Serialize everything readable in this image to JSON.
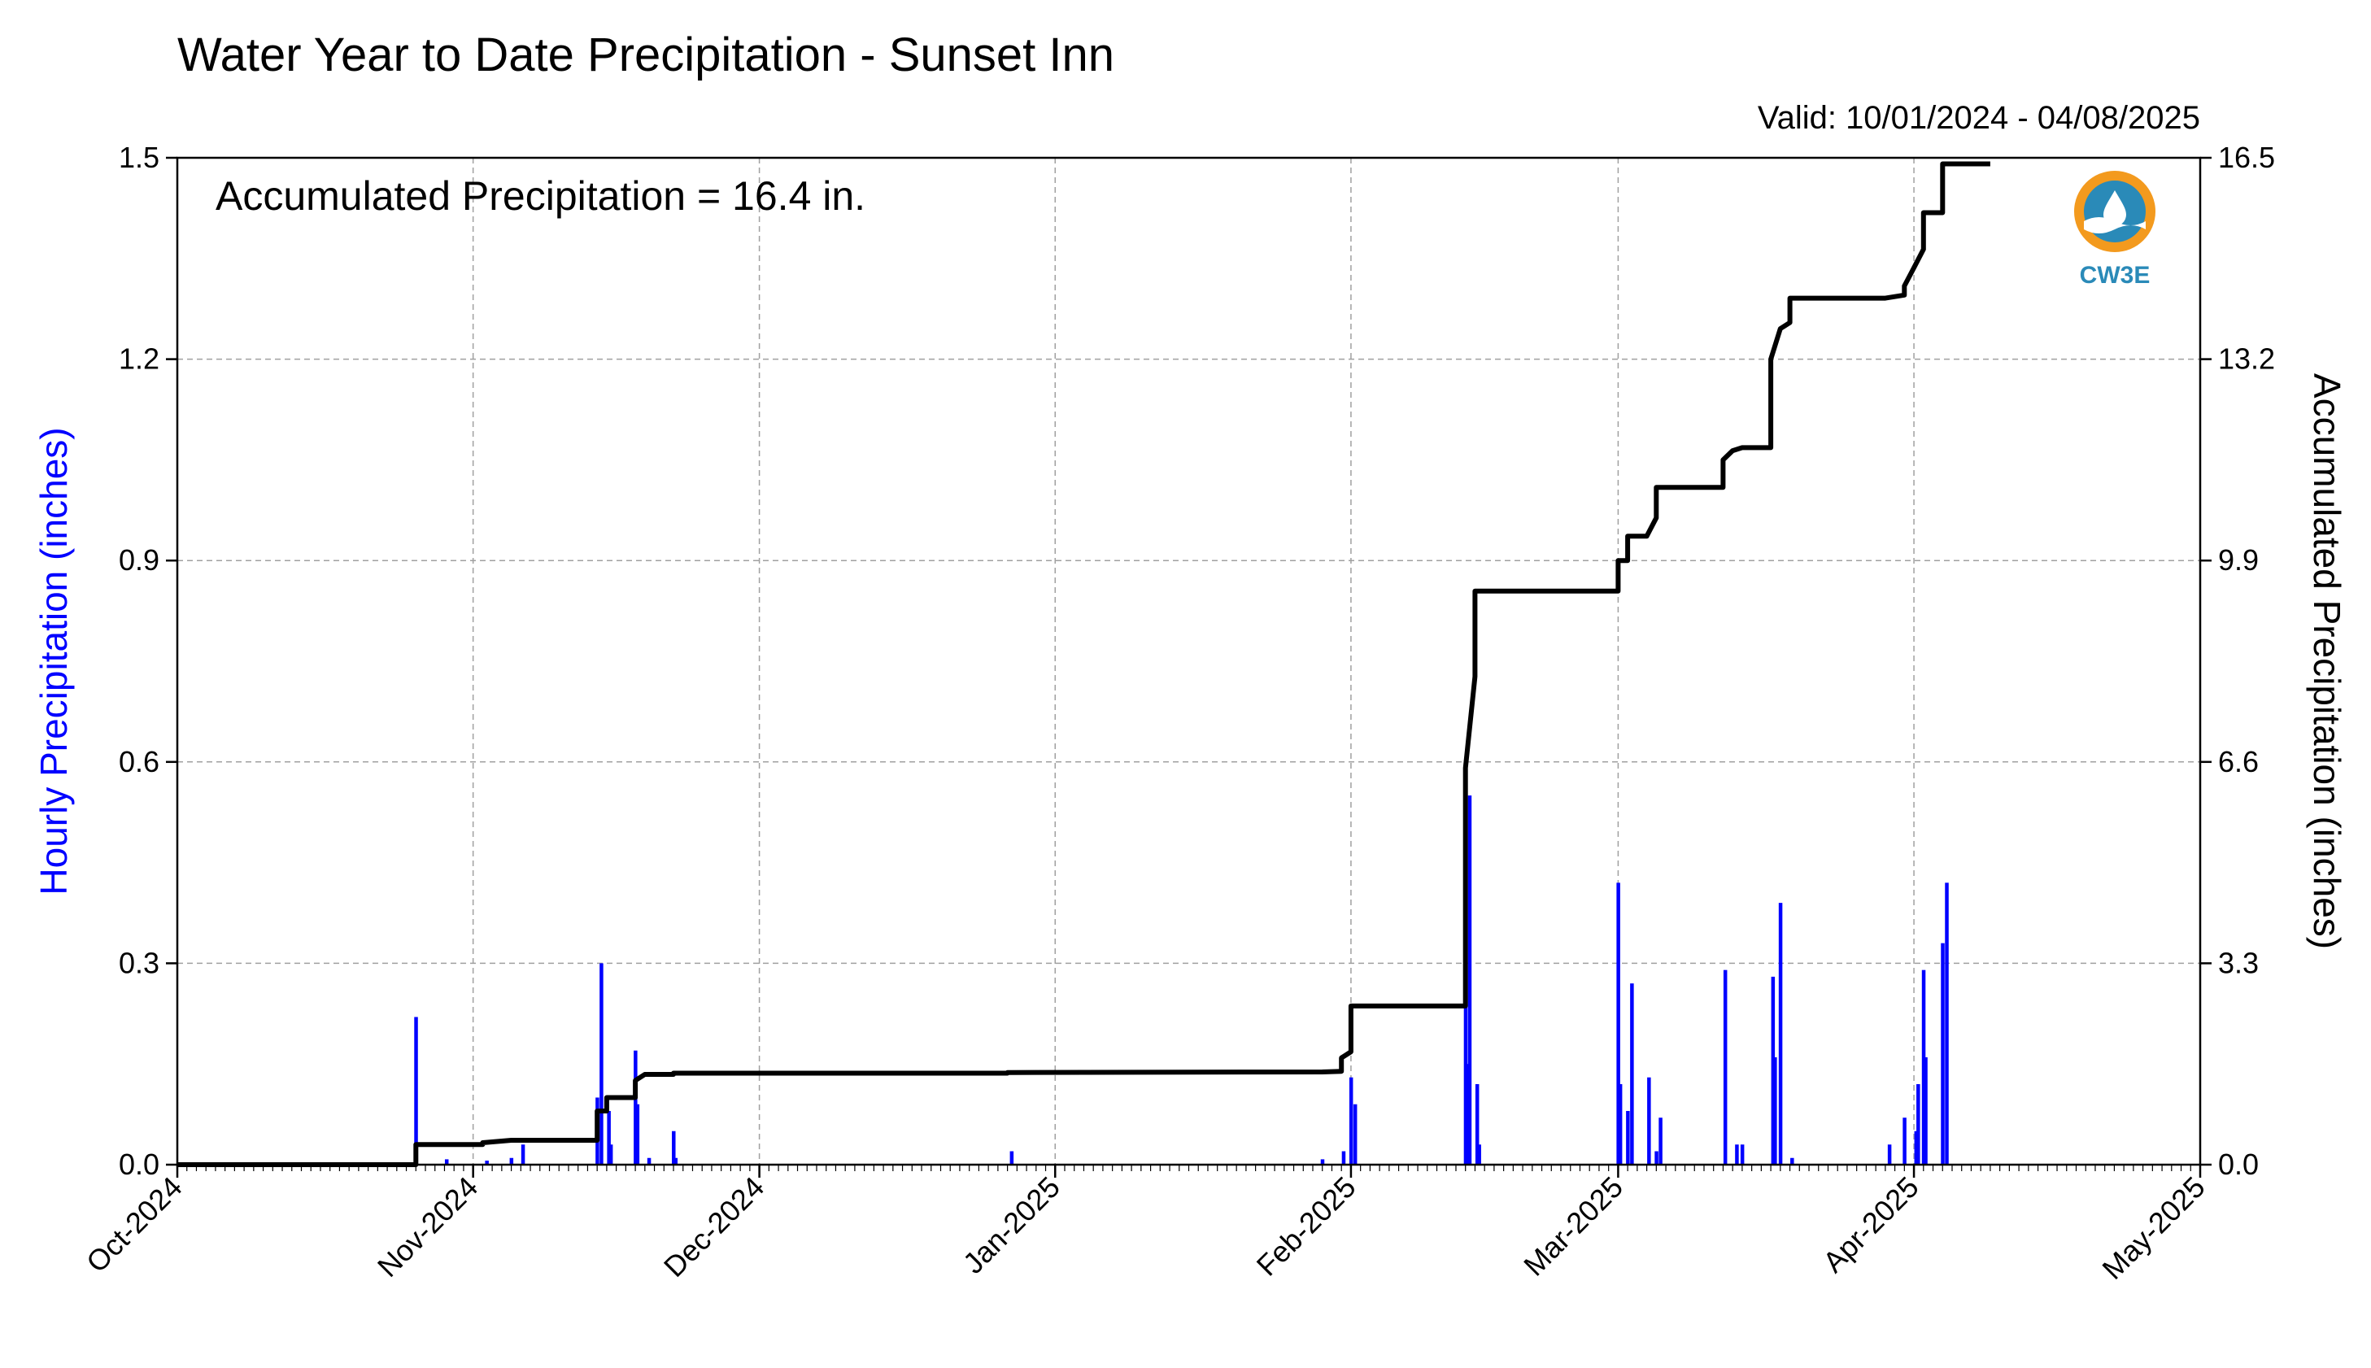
{
  "chart_data": {
    "type": "bar+line",
    "title": "Water Year to Date Precipitation - Sunset Inn",
    "subtitle": "Valid: 10/01/2024 - 04/08/2025",
    "annotation": "Accumulated Precipitation = 16.4 in.",
    "logo_label": "CW3E",
    "ylabel_left": "Hourly Precipitation (inches)",
    "ylabel_right": "Accumulated Precipitation (inches)",
    "x_range": [
      "2024-10-01",
      "2025-05-01"
    ],
    "x_ticks": [
      "Oct-2024",
      "Nov-2024",
      "Dec-2024",
      "Jan-2025",
      "Feb-2025",
      "Mar-2025",
      "Apr-2025",
      "May-2025"
    ],
    "ylim_left": [
      0,
      1.5
    ],
    "ylim_right": [
      0,
      16.5
    ],
    "yticks_left": [
      "0.0",
      "0.3",
      "0.6",
      "0.9",
      "1.2",
      "1.5"
    ],
    "yticks_right": [
      "0.0",
      "3.3",
      "6.6",
      "9.9",
      "13.2",
      "16.5"
    ],
    "grid": true,
    "colors": {
      "hourly": "#0000ff",
      "accumulated": "#000000",
      "grid": "#a0a0a0"
    },
    "series": [
      {
        "kind": "bar",
        "axis": "left",
        "x": [
          "2024-10-26",
          "2024-10-29",
          "2024-11-02",
          "2024-11-05",
          "2024-11-06",
          "2024-11-14",
          "2024-11-14",
          "2024-11-15",
          "2024-11-15",
          "2024-11-18",
          "2024-11-18",
          "2024-11-19",
          "2024-11-22",
          "2024-11-22",
          "2024-12-27",
          "2025-01-29",
          "2025-01-31",
          "2025-02-01",
          "2025-02-01",
          "2025-02-13",
          "2025-02-13",
          "2025-02-13",
          "2025-02-14",
          "2025-02-14",
          "2025-03-01",
          "2025-03-01",
          "2025-03-02",
          "2025-03-02",
          "2025-03-04",
          "2025-03-05",
          "2025-03-05",
          "2025-03-12",
          "2025-03-13",
          "2025-03-14",
          "2025-03-17",
          "2025-03-17",
          "2025-03-18",
          "2025-03-19",
          "2025-03-29",
          "2025-03-31",
          "2025-04-01",
          "2025-04-01",
          "2025-04-02",
          "2025-04-02",
          "2025-04-04",
          "2025-04-04"
        ],
        "values": [
          0.22,
          0.008,
          0.006,
          0.01,
          0.03,
          0.3,
          0.1,
          0.08,
          0.03,
          0.17,
          0.09,
          0.01,
          0.05,
          0.01,
          0.02,
          0.008,
          0.02,
          0.09,
          0.13,
          0.15,
          0.55,
          0.3,
          0.12,
          0.03,
          0.42,
          0.12,
          0.27,
          0.08,
          0.13,
          0.07,
          0.02,
          0.29,
          0.03,
          0.03,
          0.28,
          0.16,
          0.39,
          0.01,
          0.03,
          0.07,
          0.05,
          0.12,
          0.29,
          0.16,
          0.42,
          0.33
        ]
      },
      {
        "kind": "line",
        "axis": "right",
        "x": [
          "2024-10-01",
          "2024-10-26",
          "2024-10-26",
          "2024-11-01",
          "2024-11-02",
          "2024-11-02",
          "2024-11-05",
          "2024-11-14",
          "2024-11-14",
          "2024-11-15",
          "2024-11-15",
          "2024-11-18",
          "2024-11-18",
          "2024-11-19",
          "2024-11-22",
          "2024-11-22",
          "2024-12-27",
          "2024-12-27",
          "2025-01-29",
          "2025-01-31",
          "2025-01-31",
          "2025-02-01",
          "2025-02-01",
          "2025-02-13",
          "2025-02-13",
          "2025-02-14",
          "2025-02-14",
          "2025-02-14",
          "2025-03-01",
          "2025-03-01",
          "2025-03-02",
          "2025-03-02",
          "2025-03-04",
          "2025-03-05",
          "2025-03-05",
          "2025-03-12",
          "2025-03-12",
          "2025-03-13",
          "2025-03-14",
          "2025-03-17",
          "2025-03-17",
          "2025-03-18",
          "2025-03-19",
          "2025-03-19",
          "2025-03-29",
          "2025-03-31",
          "2025-03-31",
          "2025-04-01",
          "2025-04-02",
          "2025-04-02",
          "2025-04-04",
          "2025-04-04",
          "2025-04-09"
        ],
        "values": [
          0.0,
          0.0,
          0.33,
          0.33,
          0.33,
          0.36,
          0.4,
          0.4,
          0.88,
          0.88,
          1.1,
          1.1,
          1.38,
          1.48,
          1.48,
          1.5,
          1.5,
          1.51,
          1.52,
          1.53,
          1.75,
          1.85,
          2.6,
          2.6,
          6.5,
          8.0,
          9.3,
          9.4,
          9.4,
          9.9,
          9.9,
          10.3,
          10.3,
          10.6,
          11.1,
          11.1,
          11.55,
          11.7,
          11.75,
          11.75,
          13.2,
          13.7,
          13.8,
          14.2,
          14.2,
          14.25,
          14.4,
          14.7,
          15.0,
          15.6,
          15.6,
          16.4,
          16.4
        ]
      }
    ]
  }
}
